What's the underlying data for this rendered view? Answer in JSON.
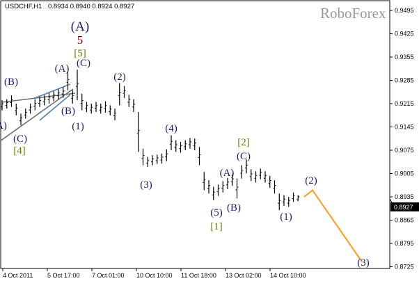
{
  "header": {
    "symbol": "USDCHF,H1",
    "ohlc": "0.8934 0.8940 0.8924 0.8927"
  },
  "watermark": "RoboForex",
  "colors": {
    "bars": "#000000",
    "wave_navy": "#1c1c6e",
    "wave_darkred": "#7a0000",
    "wave_olive": "#6b7a00",
    "forecast": "#ff9a1a",
    "trend_grey": "#6e6e6e",
    "trend_blue": "#4f7fa8",
    "price_tag_bg": "#000000"
  },
  "chart_data": {
    "type": "ohlc-bar",
    "title": "",
    "yticks": [
      "0.9495",
      "0.9425",
      "0.9355",
      "0.9285",
      "0.9215",
      "0.9145",
      "0.9075",
      "0.9005",
      "0.8935",
      "0.8865",
      "0.8795",
      "0.8725"
    ],
    "ylim": [
      0.8718,
      0.952
    ],
    "xticks": [
      "4 Oct 2011",
      "5 Oct 17:00",
      "7 Oct 01:00",
      "10 Oct 10:00",
      "11 Oct 18:00",
      "13 Oct 02:00",
      "14 Oct 10:00"
    ],
    "current_price": "0.8927",
    "bars_high_low": [
      [
        0.9225,
        0.9195
      ],
      [
        0.9228,
        0.92
      ],
      [
        0.924,
        0.9205
      ],
      [
        0.9215,
        0.918
      ],
      [
        0.9185,
        0.915
      ],
      [
        0.92,
        0.917
      ],
      [
        0.9215,
        0.9185
      ],
      [
        0.9228,
        0.9195
      ],
      [
        0.9235,
        0.9205
      ],
      [
        0.924,
        0.921
      ],
      [
        0.9247,
        0.9215
      ],
      [
        0.9252,
        0.9222
      ],
      [
        0.9258,
        0.9228
      ],
      [
        0.9265,
        0.9232
      ],
      [
        0.9311,
        0.9255
      ],
      [
        0.9255,
        0.9215
      ],
      [
        0.9317,
        0.9225
      ],
      [
        0.9245,
        0.9195
      ],
      [
        0.922,
        0.919
      ],
      [
        0.9215,
        0.9185
      ],
      [
        0.922,
        0.919
      ],
      [
        0.9215,
        0.9185
      ],
      [
        0.9222,
        0.9188
      ],
      [
        0.921,
        0.918
      ],
      [
        0.92,
        0.9165
      ],
      [
        0.9277,
        0.921
      ],
      [
        0.9268,
        0.9232
      ],
      [
        0.9242,
        0.9205
      ],
      [
        0.9228,
        0.919
      ],
      [
        0.919,
        0.907
      ],
      [
        0.908,
        0.903
      ],
      [
        0.9055,
        0.9025
      ],
      [
        0.906,
        0.903
      ],
      [
        0.9062,
        0.9034
      ],
      [
        0.9065,
        0.9035
      ],
      [
        0.9078,
        0.9042
      ],
      [
        0.912,
        0.9075
      ],
      [
        0.9105,
        0.907
      ],
      [
        0.91,
        0.9068
      ],
      [
        0.9105,
        0.9075
      ],
      [
        0.9112,
        0.908
      ],
      [
        0.911,
        0.9075
      ],
      [
        0.9085,
        0.903
      ],
      [
        0.901,
        0.8955
      ],
      [
        0.8985,
        0.8945
      ],
      [
        0.8965,
        0.8925
      ],
      [
        0.8972,
        0.8938
      ],
      [
        0.8982,
        0.8948
      ],
      [
        0.8992,
        0.8958
      ],
      [
        0.9002,
        0.8968
      ],
      [
        0.899,
        0.893
      ],
      [
        0.903,
        0.899
      ],
      [
        0.9047,
        0.9005
      ],
      [
        0.9018,
        0.8982
      ],
      [
        0.9012,
        0.8978
      ],
      [
        0.902,
        0.8988
      ],
      [
        0.9012,
        0.8978
      ],
      [
        0.8998,
        0.8962
      ],
      [
        0.8985,
        0.8945
      ],
      [
        0.8945,
        0.8895
      ],
      [
        0.894,
        0.8908
      ],
      [
        0.8935,
        0.8905
      ],
      [
        0.8948,
        0.892
      ],
      [
        0.894,
        0.8922
      ]
    ],
    "forecast_path": [
      [
        0.8935
      ],
      [
        0.8955
      ],
      [
        0.874
      ]
    ]
  },
  "wave_labels": [
    {
      "text": "(A)",
      "color": "navy"
    },
    {
      "text": "5",
      "color": "darkred"
    },
    {
      "text": "[5]",
      "color": "olive"
    },
    {
      "text": "(A)",
      "color": "navy"
    },
    {
      "text": "(C)",
      "color": "navy"
    },
    {
      "text": "(B)",
      "color": "navy"
    },
    {
      "text": "(2)",
      "color": "navy"
    },
    {
      "text": "(B)",
      "color": "navy"
    },
    {
      "text": "(1)",
      "color": "navy"
    },
    {
      "text": "A)",
      "color": "navy"
    },
    {
      "text": "(C)",
      "color": "navy"
    },
    {
      "text": "[4]",
      "color": "olive"
    },
    {
      "text": "(4)",
      "color": "navy"
    },
    {
      "text": "(3)",
      "color": "navy"
    },
    {
      "text": "[2]",
      "color": "olive"
    },
    {
      "text": "(C)",
      "color": "navy"
    },
    {
      "text": "(A)",
      "color": "navy"
    },
    {
      "text": "(5)",
      "color": "navy"
    },
    {
      "text": "[1]",
      "color": "olive"
    },
    {
      "text": "(B)",
      "color": "navy"
    },
    {
      "text": "(1)",
      "color": "navy"
    },
    {
      "text": "(2)",
      "color": "navy"
    },
    {
      "text": "(3)",
      "color": "navy"
    }
  ]
}
